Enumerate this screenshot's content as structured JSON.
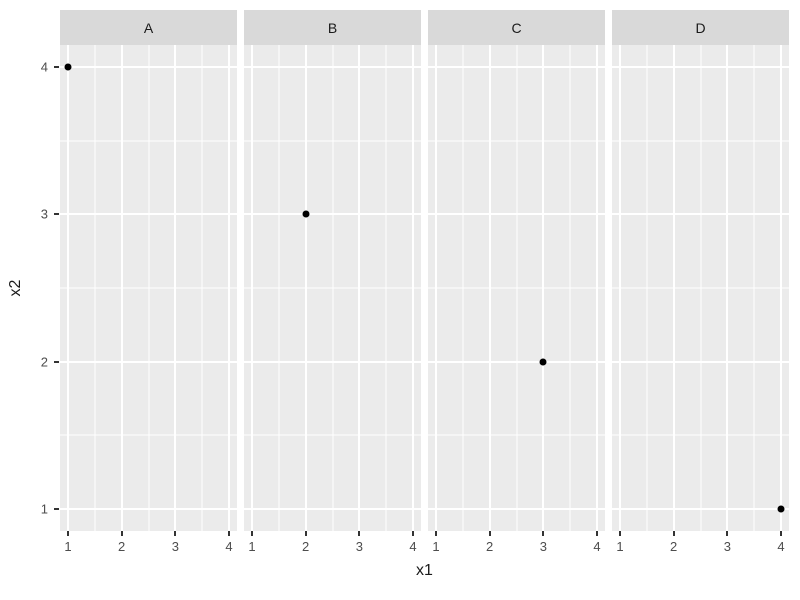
{
  "chart_data": {
    "type": "scatter",
    "title": "",
    "xlabel": "x1",
    "ylabel": "x2",
    "grid": "on",
    "legend": "none",
    "facets": [
      {
        "label": "A",
        "points": [
          {
            "x": 1,
            "y": 4
          }
        ]
      },
      {
        "label": "B",
        "points": [
          {
            "x": 2,
            "y": 3
          }
        ]
      },
      {
        "label": "C",
        "points": [
          {
            "x": 3,
            "y": 2
          }
        ]
      },
      {
        "label": "D",
        "points": [
          {
            "x": 4,
            "y": 1
          }
        ]
      }
    ],
    "x_ticks": [
      1,
      2,
      3,
      4
    ],
    "y_ticks": [
      1,
      2,
      3,
      4
    ],
    "x_minor_ticks": [
      1.5,
      2.5,
      3.5
    ],
    "y_minor_ticks": [
      1.5,
      2.5,
      3.5
    ],
    "x_range": [
      0.85,
      4.15
    ],
    "y_range": [
      0.85,
      4.15
    ],
    "colors": {
      "figure_background": "#ffffff",
      "panel_background": "#ebebeb",
      "strip_background": "#d9d9d9",
      "strip_text": "#1a1a1a",
      "gridline": "#ffffff",
      "point": "#000000",
      "tick_mark": "#333333",
      "tick_label": "#4d4d4d",
      "axis_title": "#1a1a1a"
    }
  }
}
